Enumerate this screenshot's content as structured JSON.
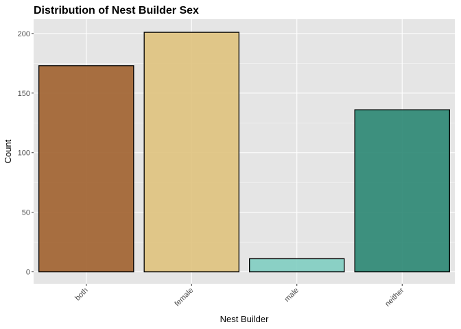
{
  "chart_data": {
    "type": "bar",
    "title": "Distribution of Nest Builder Sex",
    "xlabel": "Nest Builder",
    "ylabel": "Count",
    "categories": [
      "both",
      "female",
      "male",
      "neither"
    ],
    "values": [
      173,
      201,
      11,
      136
    ],
    "colors": [
      "#a0612d",
      "#dfc27d",
      "#80cdc1",
      "#2a8672"
    ],
    "bar_outline": "#000000",
    "panel_background": "#e5e5e5",
    "grid_color": "#ffffff",
    "grid": true,
    "ylim": [
      -10,
      212
    ],
    "yticks": [
      0,
      50,
      100,
      150,
      200
    ],
    "yticklabels": [
      "0",
      "50",
      "100",
      "150",
      "200"
    ],
    "xtick_rotation": -45
  }
}
